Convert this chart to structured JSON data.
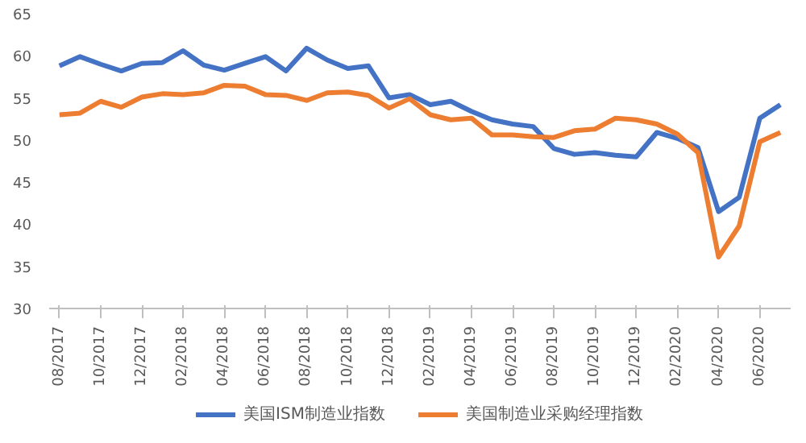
{
  "chart_data": {
    "type": "line",
    "categories": [
      "08/2017",
      null,
      "10/2017",
      null,
      "12/2017",
      null,
      "02/2018",
      null,
      "04/2018",
      null,
      "06/2018",
      null,
      "08/2018",
      null,
      "10/2018",
      null,
      "12/2018",
      null,
      "02/2019",
      null,
      "04/2019",
      null,
      "06/2019",
      null,
      "08/2019",
      null,
      "10/2019",
      null,
      "12/2019",
      null,
      "02/2020",
      null,
      "04/2020",
      null,
      "06/2020",
      null
    ],
    "series": [
      {
        "name": "美国ISM制造业指数",
        "color": "#4472c4",
        "values": [
          58.8,
          59.9,
          59.0,
          58.2,
          59.1,
          59.2,
          60.6,
          58.9,
          58.3,
          59.1,
          59.9,
          58.2,
          60.9,
          59.5,
          58.5,
          58.8,
          55.0,
          55.4,
          54.2,
          54.6,
          53.4,
          52.4,
          51.9,
          51.6,
          49.0,
          48.3,
          48.5,
          48.2,
          48.0,
          50.9,
          50.2,
          49.1,
          41.5,
          43.2,
          52.6,
          54.2
        ]
      },
      {
        "name": "美国制造业采购经理指数",
        "color": "#ed7d31",
        "values": [
          53.0,
          53.2,
          54.6,
          53.9,
          55.1,
          55.5,
          55.4,
          55.6,
          56.5,
          56.4,
          55.4,
          55.3,
          54.7,
          55.6,
          55.7,
          55.3,
          53.8,
          54.9,
          53.0,
          52.4,
          52.6,
          50.6,
          50.6,
          50.4,
          50.3,
          51.1,
          51.3,
          52.6,
          52.4,
          51.9,
          50.7,
          48.5,
          36.1,
          39.8,
          49.8,
          50.9
        ]
      }
    ],
    "ylim": [
      30,
      65
    ],
    "yticks": [
      30,
      35,
      40,
      45,
      50,
      55,
      60,
      65
    ],
    "grid": false,
    "legend": "bottom",
    "marker": "none",
    "line_style": "solid"
  }
}
